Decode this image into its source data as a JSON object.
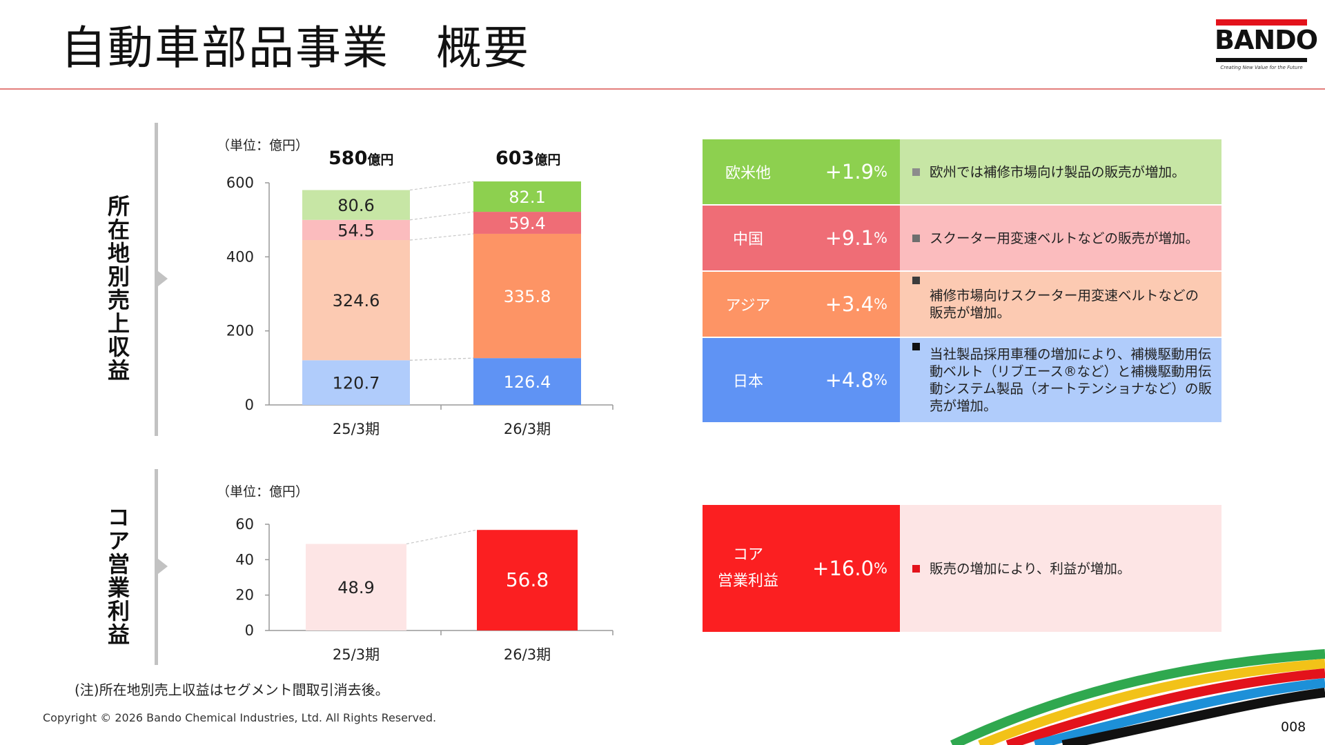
{
  "page": {
    "title": "自動車部品事業　概要",
    "note": "(注)所在地別売上収益はセグメント間取引消去後。",
    "copyright": "Copyright © 2026 Bando Chemical Industries, Ltd. All Rights Reserved.",
    "page_number": "008"
  },
  "logo": {
    "text": "BANDO",
    "tagline": "Creating New Value for the Future"
  },
  "sections": {
    "sales_label": "所在地別売上収益",
    "profit_label": "コア営業利益"
  },
  "colors": {
    "accent_red": "#e3121b",
    "europe_dark": "#8dd04f",
    "europe_light": "#c7e6a5",
    "china_dark": "#ef6d76",
    "china_light": "#fbbcbe",
    "asia_dark": "#fd9465",
    "asia_light": "#fccab2",
    "japan_dark": "#5f93f4",
    "japan_light": "#b0ccfb",
    "profit_dark": "#fb1f21",
    "profit_light": "#fde5e5"
  },
  "chart_data": [
    {
      "type": "bar",
      "stacked": true,
      "unit_label": "（単位：億円）",
      "categories": [
        "25/3期",
        "26/3期"
      ],
      "totals_text": [
        {
          "num": "580",
          "unit": "億円"
        },
        {
          "num": "603",
          "unit": "億円"
        }
      ],
      "series": [
        {
          "key": "japan",
          "values": [
            120.7,
            126.4
          ],
          "labels": [
            "120.7",
            "126.4"
          ]
        },
        {
          "key": "asia",
          "values": [
            324.6,
            335.8
          ],
          "labels": [
            "324.6",
            "335.8"
          ]
        },
        {
          "key": "china",
          "values": [
            54.5,
            59.4
          ],
          "labels": [
            "54.5",
            "59.4"
          ]
        },
        {
          "key": "europe",
          "values": [
            80.6,
            82.1
          ],
          "labels": [
            "80.6",
            "82.1"
          ]
        }
      ],
      "ylim": [
        0,
        600
      ],
      "yticks": [
        "0",
        "200",
        "400",
        "600"
      ]
    },
    {
      "type": "bar",
      "unit_label": "（単位：億円）",
      "categories": [
        "25/3期",
        "26/3期"
      ],
      "values": [
        48.9,
        56.8
      ],
      "labels": [
        "48.9",
        "56.8"
      ],
      "ylim": [
        0,
        60
      ],
      "yticks": [
        "0",
        "20",
        "40",
        "60"
      ]
    }
  ],
  "region_table": [
    {
      "key": "europe",
      "name": "欧米他",
      "pct": "+1.9",
      "pct_unit": "%",
      "desc": "欧州では補修市場向け製品の販売が増加。",
      "bullet_color": "#8c8c8c"
    },
    {
      "key": "china",
      "name": "中国",
      "pct": "+9.1",
      "pct_unit": "%",
      "desc": "スクーター用変速ベルトなどの販売が増加。",
      "bullet_color": "#6e6e6e"
    },
    {
      "key": "asia",
      "name": "アジア",
      "pct": "+3.4",
      "pct_unit": "%",
      "desc": "補修市場向けスクーター用変速ベルトなどの販売が増加。",
      "bullet_color": "#3c3c3c"
    },
    {
      "key": "japan",
      "name": "日本",
      "pct": "+4.8",
      "pct_unit": "%",
      "desc": "当社製品採用車種の増加により、補機駆動用伝動ベルト（リブエース®など）と補機駆動用伝動システム製品（オートテンショナなど）の販売が増加。",
      "bullet_color": "#111111"
    }
  ],
  "profit_table": {
    "name_line1": "コア",
    "name_line2": "営業利益",
    "pct": "+16.0",
    "pct_unit": "%",
    "desc": "販売の増加により、利益が増加。",
    "bullet_color": "#e3121b"
  }
}
